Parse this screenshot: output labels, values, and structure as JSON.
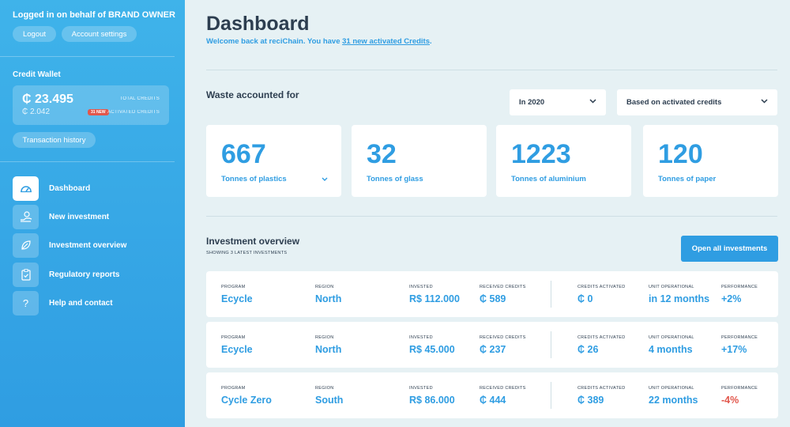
{
  "sidebar": {
    "login_line": "Logged in on behalf of BRAND OWNER",
    "logout_label": "Logout",
    "account_label": "Account settings",
    "wallet": {
      "title": "Credit Wallet",
      "total": "₵ 23.495",
      "total_label": "TOTAL CREDITS",
      "activated": "₵ 2.042",
      "new_badge": "31 NEW",
      "activated_label": "ACTIVATED CREDITS"
    },
    "transaction_label": "Transaction history",
    "nav": [
      {
        "label": "Dashboard",
        "icon": "gauge-icon",
        "active": true
      },
      {
        "label": "New investment",
        "icon": "hand-coin-icon",
        "active": false
      },
      {
        "label": "Investment overview",
        "icon": "leaf-icon",
        "active": false
      },
      {
        "label": "Regulatory reports",
        "icon": "clipboard-icon",
        "active": false
      },
      {
        "label": "Help and contact",
        "icon": "question-icon",
        "active": false
      }
    ]
  },
  "header": {
    "title": "Dashboard",
    "welcome_prefix": "Welcome back at reciChain. You have ",
    "welcome_link": "31 new activated Credits",
    "welcome_suffix": "."
  },
  "waste": {
    "title": "Waste accounted for",
    "year_select": "In 2020",
    "basis_select": "Based on activated credits",
    "stats": [
      {
        "value": "667",
        "label": "Tonnes of plastics"
      },
      {
        "value": "32",
        "label": "Tonnes of glass"
      },
      {
        "value": "1223",
        "label": "Tonnes of aluminium"
      },
      {
        "value": "120",
        "label": "Tonnes of paper"
      }
    ]
  },
  "investments": {
    "title": "Investment overview",
    "subtitle": "SHOWING 3 LATEST INVESTMENTS",
    "open_all_label": "Open all investments",
    "columns": {
      "program": "PROGRAM",
      "region": "REGION",
      "invested": "INVESTED",
      "received": "RECEIVED CREDITS",
      "activated": "CREDITS ACTIVATED",
      "operational": "UNIT OPERATIONAL",
      "performance": "PERFORMANCE"
    },
    "rows": [
      {
        "program": "Ecycle",
        "region": "North",
        "invested": "R$ 112.000",
        "received": "₵ 589",
        "activated": "₵ 0",
        "operational": "in 12 months",
        "performance": "+2%",
        "performance_negative": false
      },
      {
        "program": "Ecycle",
        "region": "North",
        "invested": "R$ 45.000",
        "received": "₵ 237",
        "activated": "₵ 26",
        "operational": "4 months",
        "performance": "+17%",
        "performance_negative": false
      },
      {
        "program": "Cycle Zero",
        "region": "South",
        "invested": "R$ 86.000",
        "received": "₵ 444",
        "activated": "₵ 389",
        "operational": "22 months",
        "performance": "-4%",
        "performance_negative": true
      }
    ]
  },
  "colors": {
    "accent": "#2f9de2",
    "negative": "#e2574c",
    "background": "#e6f1f4",
    "text": "#2d3e50"
  }
}
